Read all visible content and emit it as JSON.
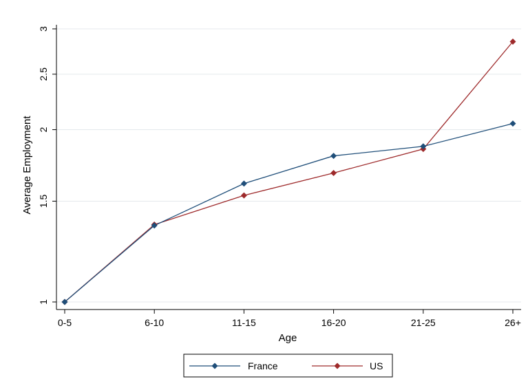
{
  "chart_data": {
    "type": "line",
    "title": "",
    "xlabel": "Age",
    "ylabel": "Average Employment",
    "categories": [
      "0-5",
      "6-10",
      "11-15",
      "16-20",
      "21-25",
      "26+"
    ],
    "y_scale": "log",
    "ylim": [
      0.97,
      3.05
    ],
    "yticks": [
      1,
      1.5,
      2,
      2.5,
      3
    ],
    "ytick_labels": [
      "1",
      "1.5",
      "2",
      "2.5",
      "3"
    ],
    "grid": "horizontal",
    "legend_position": "bottom",
    "series": [
      {
        "name": "France",
        "color": "#1f4e79",
        "values": [
          1.0,
          1.36,
          1.61,
          1.8,
          1.87,
          2.05
        ]
      },
      {
        "name": "US",
        "color": "#9e2a2b",
        "values": [
          1.0,
          1.365,
          1.535,
          1.68,
          1.85,
          2.85
        ]
      }
    ]
  }
}
